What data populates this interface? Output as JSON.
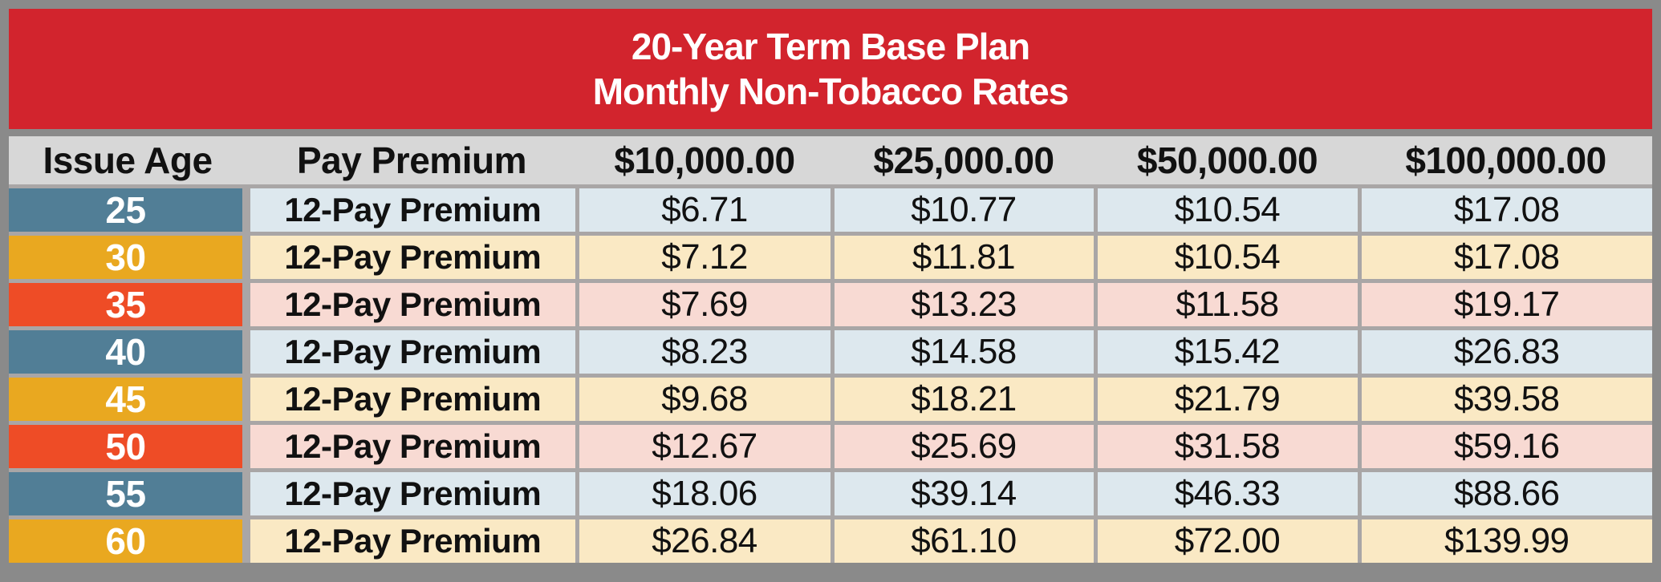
{
  "title": {
    "line1": "20-Year Term Base Plan",
    "line2": "Monthly Non-Tobacco Rates"
  },
  "table": {
    "headers": [
      "Issue Age",
      "Pay Premium",
      "$10,000.00",
      "$25,000.00",
      "$50,000.00",
      "$100,000.00"
    ],
    "rows": [
      {
        "age": "25",
        "premium_type": "12-Pay Premium",
        "rates": [
          "$6.71",
          "$10.77",
          "$10.54",
          "$17.08"
        ],
        "theme": "blue"
      },
      {
        "age": "30",
        "premium_type": "12-Pay Premium",
        "rates": [
          "$7.12",
          "$11.81",
          "$10.54",
          "$17.08"
        ],
        "theme": "gold"
      },
      {
        "age": "35",
        "premium_type": "12-Pay Premium",
        "rates": [
          "$7.69",
          "$13.23",
          "$11.58",
          "$19.17"
        ],
        "theme": "orange"
      },
      {
        "age": "40",
        "premium_type": "12-Pay Premium",
        "rates": [
          "$8.23",
          "$14.58",
          "$15.42",
          "$26.83"
        ],
        "theme": "blue"
      },
      {
        "age": "45",
        "premium_type": "12-Pay Premium",
        "rates": [
          "$9.68",
          "$18.21",
          "$21.79",
          "$39.58"
        ],
        "theme": "gold"
      },
      {
        "age": "50",
        "premium_type": "12-Pay Premium",
        "rates": [
          "$12.67",
          "$25.69",
          "$31.58",
          "$59.16"
        ],
        "theme": "orange"
      },
      {
        "age": "55",
        "premium_type": "12-Pay Premium",
        "rates": [
          "$18.06",
          "$39.14",
          "$46.33",
          "$88.66"
        ],
        "theme": "blue"
      },
      {
        "age": "60",
        "premium_type": "12-Pay Premium",
        "rates": [
          "$26.84",
          "$61.10",
          "$72.00",
          "$139.99"
        ],
        "theme": "gold"
      }
    ]
  },
  "colors": {
    "frame_gray": "#8a8a8a",
    "grid_gray": "#a9a6a6",
    "header_gray": "#d7d7d7",
    "title_red": "#d2242d",
    "title_text": "#ffffff",
    "steel_blue": "#517e96",
    "gold": "#e9a820",
    "orange": "#ee4c26",
    "light_blue": "#dde8ee",
    "light_gold": "#fae9c4",
    "light_pink": "#f8dad3",
    "text_dark": "#111111",
    "age_text": "#ffffff"
  }
}
